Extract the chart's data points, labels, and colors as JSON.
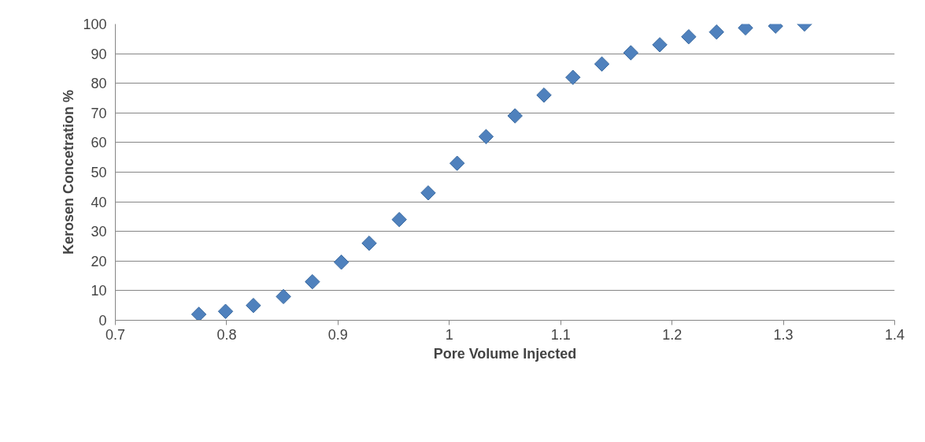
{
  "chart_data": {
    "type": "scatter",
    "xlabel": "Pore Volume Injected",
    "ylabel": "Kerosen Concetration %",
    "x": [
      0.775,
      0.799,
      0.824,
      0.851,
      0.877,
      0.903,
      0.928,
      0.955,
      0.981,
      1.007,
      1.033,
      1.059,
      1.085,
      1.111,
      1.137,
      1.163,
      1.189,
      1.215,
      1.24,
      1.266,
      1.293,
      1.319
    ],
    "series": [
      {
        "color": "#4f81bd",
        "values": [
          2,
          3,
          5,
          8,
          13,
          19.6,
          26,
          34,
          43,
          53,
          62,
          69,
          76,
          82,
          86.5,
          90.3,
          93,
          95.7,
          97.3,
          98.7,
          99.3,
          100
        ]
      }
    ],
    "xlim": [
      0.7,
      1.4
    ],
    "xticks": [
      0.7,
      0.8,
      0.9,
      1,
      1.1,
      1.2,
      1.3,
      1.4
    ],
    "ylim": [
      0,
      100
    ],
    "yticks": [
      0,
      10,
      20,
      30,
      40,
      50,
      60,
      70,
      80,
      90,
      100
    ],
    "grid": "y",
    "marker": "diamond"
  }
}
